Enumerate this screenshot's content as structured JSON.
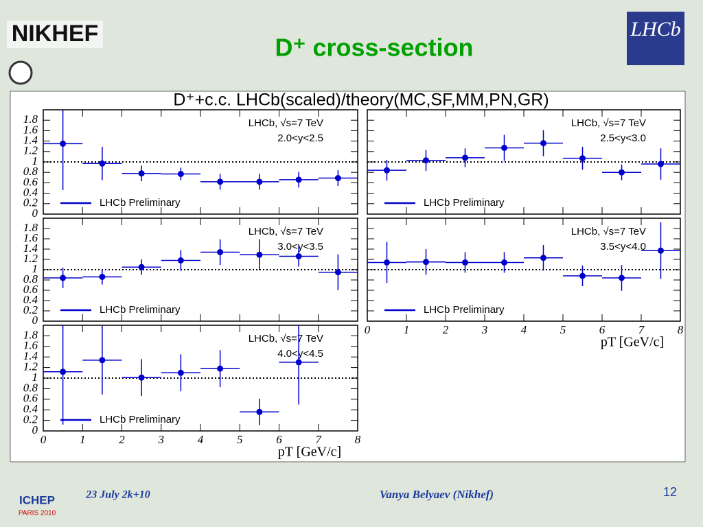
{
  "slide_title": "D⁺ cross-section",
  "figure_title": "D⁺+c.c. LHCb(scaled)/theory(MC,SF,MM,PN,GR)",
  "logos": {
    "nikhef": "NIKHEF",
    "lhcb": "LHCb",
    "ichep": "ICHEP",
    "ichep_sub": "PARIS 2010"
  },
  "footer": {
    "date": "23 July 2k+10",
    "author": "Vanya Belyaev (Nikhef)",
    "page": "12"
  },
  "chart_data": [
    {
      "type": "errorbar",
      "annotations": [
        "LHCb, √s=7 TeV",
        "2.0<y<2.5"
      ],
      "x": [
        0.5,
        1.5,
        2.5,
        3.5,
        4.5,
        5.5,
        6.5,
        7.5
      ],
      "xerr": [
        0.5,
        0.5,
        0.5,
        0.5,
        0.5,
        0.5,
        0.5,
        0.5
      ],
      "series": [
        {
          "name": "LHCb Preliminary",
          "color": "#0000cc",
          "values": [
            1.35,
            0.97,
            0.78,
            0.77,
            0.62,
            0.62,
            0.66,
            0.69
          ],
          "errors": [
            0.89,
            0.32,
            0.15,
            0.12,
            0.15,
            0.15,
            0.15,
            0.15
          ]
        }
      ],
      "xlim": [
        0,
        8
      ],
      "ylim": [
        0,
        2
      ],
      "xticks": [
        0,
        1,
        2,
        3,
        4,
        5,
        6,
        7,
        8
      ],
      "yticks": [
        0,
        0.2,
        0.4,
        0.6,
        0.8,
        1,
        1.2,
        1.4,
        1.6,
        1.8
      ],
      "reference_line": 1
    },
    {
      "type": "errorbar",
      "annotations": [
        "LHCb, √s=7 TeV",
        "2.5<y<3.0"
      ],
      "x": [
        0.5,
        1.5,
        2.5,
        3.5,
        4.5,
        5.5,
        6.5,
        7.5
      ],
      "xerr": [
        0.5,
        0.5,
        0.5,
        0.5,
        0.5,
        0.5,
        0.5,
        0.5
      ],
      "series": [
        {
          "name": "LHCb Preliminary",
          "color": "#0000cc",
          "values": [
            0.84,
            1.03,
            1.08,
            1.27,
            1.36,
            1.07,
            0.8,
            0.96
          ],
          "errors": [
            0.2,
            0.2,
            0.18,
            0.25,
            0.25,
            0.22,
            0.15,
            0.3
          ]
        }
      ],
      "xlim": [
        0,
        8
      ],
      "ylim": [
        0,
        2
      ],
      "xticks": [
        0,
        1,
        2,
        3,
        4,
        5,
        6,
        7,
        8
      ],
      "yticks": [
        0,
        0.2,
        0.4,
        0.6,
        0.8,
        1,
        1.2,
        1.4,
        1.6,
        1.8
      ],
      "reference_line": 1
    },
    {
      "type": "errorbar",
      "annotations": [
        "LHCb, √s=7 TeV",
        "3.0<y<3.5"
      ],
      "x": [
        0.5,
        1.5,
        2.5,
        3.5,
        4.5,
        5.5,
        6.5,
        7.5
      ],
      "xerr": [
        0.5,
        0.5,
        0.5,
        0.5,
        0.5,
        0.5,
        0.5,
        0.5
      ],
      "series": [
        {
          "name": "LHCb Preliminary",
          "color": "#0000cc",
          "values": [
            0.84,
            0.86,
            1.05,
            1.18,
            1.34,
            1.29,
            1.26,
            0.95
          ],
          "errors": [
            0.2,
            0.15,
            0.15,
            0.2,
            0.25,
            0.3,
            0.2,
            0.35
          ]
        }
      ],
      "xlim": [
        0,
        8
      ],
      "ylim": [
        0,
        2
      ],
      "xticks": [
        0,
        1,
        2,
        3,
        4,
        5,
        6,
        7,
        8
      ],
      "yticks": [
        0,
        0.2,
        0.4,
        0.6,
        0.8,
        1,
        1.2,
        1.4,
        1.6,
        1.8
      ],
      "reference_line": 1
    },
    {
      "type": "errorbar",
      "annotations": [
        "LHCb, √s=7 TeV",
        "3.5<y<4.0"
      ],
      "x": [
        0.5,
        1.5,
        2.5,
        3.5,
        4.5,
        5.5,
        6.5,
        7.5
      ],
      "xerr": [
        0.5,
        0.5,
        0.5,
        0.5,
        0.5,
        0.5,
        0.5,
        0.5
      ],
      "series": [
        {
          "name": "LHCb Preliminary",
          "color": "#0000cc",
          "values": [
            1.14,
            1.15,
            1.14,
            1.14,
            1.23,
            0.88,
            0.84,
            1.37
          ],
          "errors": [
            0.4,
            0.25,
            0.2,
            0.2,
            0.25,
            0.2,
            0.25,
            0.55
          ]
        }
      ],
      "xlim": [
        0,
        8
      ],
      "ylim": [
        0,
        2
      ],
      "xticks": [
        0,
        1,
        2,
        3,
        4,
        5,
        6,
        7,
        8
      ],
      "yticks": [
        0,
        0.2,
        0.4,
        0.6,
        0.8,
        1,
        1.2,
        1.4,
        1.6,
        1.8
      ],
      "reference_line": 1,
      "x_label": "pT [GeV/c]"
    },
    {
      "type": "errorbar",
      "annotations": [
        "LHCb, √s=7 TeV",
        "4.0<y<4.5"
      ],
      "x": [
        0.5,
        1.5,
        2.5,
        3.5,
        4.5,
        5.5,
        6.5,
        7.5
      ],
      "xerr": [
        0.5,
        0.5,
        0.5,
        0.5,
        0.5,
        0.5,
        0.5,
        0.5
      ],
      "series": [
        {
          "name": "LHCb Preliminary",
          "color": "#0000cc",
          "values": [
            1.12,
            1.34,
            1.01,
            1.1,
            1.18,
            0.36,
            1.3,
            null
          ],
          "errors": [
            1.0,
            0.65,
            0.35,
            0.35,
            0.35,
            0.25,
            0.8,
            null
          ]
        }
      ],
      "xlim": [
        0,
        8
      ],
      "ylim": [
        0,
        2
      ],
      "xticks": [
        0,
        1,
        2,
        3,
        4,
        5,
        6,
        7,
        8
      ],
      "yticks": [
        0,
        0.2,
        0.4,
        0.6,
        0.8,
        1,
        1.2,
        1.4,
        1.6,
        1.8
      ],
      "reference_line": 1,
      "x_label": "pT [GeV/c]"
    }
  ]
}
